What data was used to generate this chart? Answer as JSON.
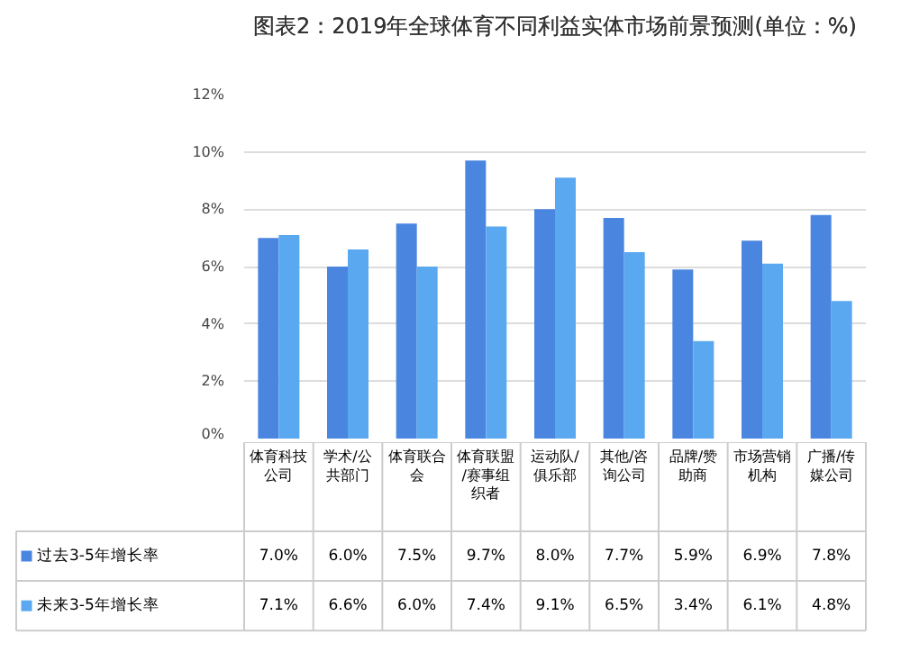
{
  "chart_data": {
    "type": "bar",
    "title": "图表2：2019年全球体育不同利益实体市场前景预测(单位：%)",
    "categories": [
      "体育科技公司",
      "学术/公共部门",
      "体育联合会",
      "体育联盟/赛事组织者",
      "运动队/俱乐部",
      "其他/咨询公司",
      "品牌/赞助商",
      "市场营销机构",
      "广播/传媒公司"
    ],
    "series": [
      {
        "name": "过去3-5年增长率",
        "color": "#4a86e0",
        "values": [
          7.0,
          6.0,
          7.5,
          9.7,
          8.0,
          7.7,
          5.9,
          6.9,
          7.8
        ],
        "value_labels": [
          "7.0%",
          "6.0%",
          "7.5%",
          "9.7%",
          "8.0%",
          "7.7%",
          "5.9%",
          "6.9%",
          "7.8%"
        ]
      },
      {
        "name": "未来3-5年增长率",
        "color": "#5aa8f0",
        "values": [
          7.1,
          6.6,
          6.0,
          7.4,
          9.1,
          6.5,
          3.4,
          6.1,
          4.8
        ],
        "value_labels": [
          "7.1%",
          "6.6%",
          "6.0%",
          "7.4%",
          "9.1%",
          "6.5%",
          "3.4%",
          "6.1%",
          "4.8%"
        ]
      }
    ],
    "ylim": [
      0,
      12
    ],
    "yticks": [
      {
        "value": 0,
        "label": "0%"
      },
      {
        "value": 2,
        "label": "2%"
      },
      {
        "value": 4,
        "label": "4%"
      },
      {
        "value": 6,
        "label": "6%"
      },
      {
        "value": 8,
        "label": "8%"
      },
      {
        "value": 10,
        "label": "10%"
      },
      {
        "value": 12,
        "label": "12%"
      }
    ],
    "grid": "y",
    "legend": "bottom left"
  }
}
